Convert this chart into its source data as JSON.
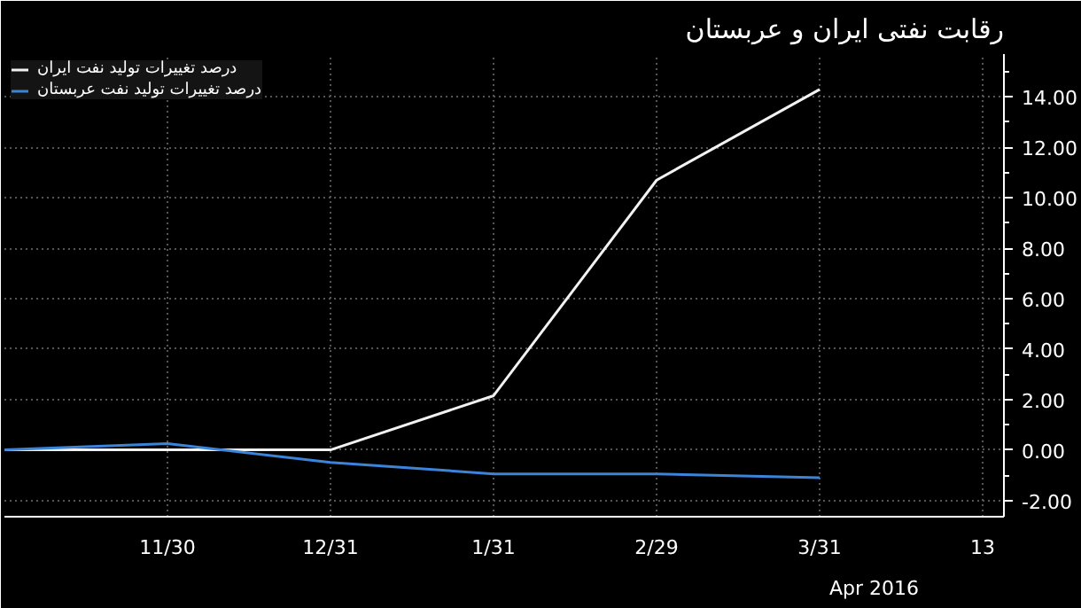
{
  "chart_data": {
    "type": "line",
    "title": "رقابت نفتی ایران و عربستان",
    "categories": [
      null,
      "11/30",
      "12/31",
      "1/31",
      "2/29",
      "3/31",
      "13"
    ],
    "series": [
      {
        "name": "درصد تغییرات تولید نفت ایران",
        "color": "#f2f2f2",
        "values": [
          0,
          0,
          0,
          2.15,
          10.7,
          14.3,
          null
        ]
      },
      {
        "name": "درصد تغییرات تولید نفت عربستان",
        "color": "#3b84d9",
        "values": [
          0,
          0.25,
          -0.5,
          -0.95,
          -0.95,
          -1.1,
          null
        ]
      }
    ],
    "ylim": [
      -2.65,
      15.7
    ],
    "yticks": [
      {
        "value": -2,
        "label": "-2.00"
      },
      {
        "value": 0,
        "label": "0.00"
      },
      {
        "value": 2,
        "label": "2.00"
      },
      {
        "value": 4,
        "label": "4.00"
      },
      {
        "value": 6,
        "label": "6.00"
      },
      {
        "value": 8,
        "label": "8.00"
      },
      {
        "value": 10,
        "label": "10.00"
      },
      {
        "value": 12,
        "label": "12.00"
      },
      {
        "value": 14,
        "label": "14.00"
      }
    ],
    "annotations": [
      "Apr 2016"
    ],
    "grid": true,
    "legend": "top left",
    "marker": "none",
    "line_style": "solid"
  }
}
